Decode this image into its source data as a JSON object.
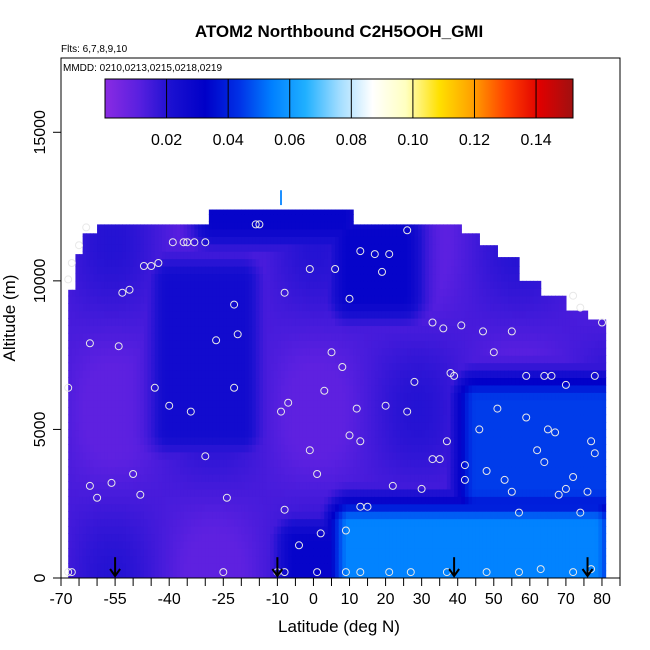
{
  "chart_data": {
    "type": "heatmap",
    "title": "ATOM2 Northbound C2H5OOH_GMI",
    "annotation_flights": "Flts: 6,7,8,9,10",
    "annotation_dates": "MMDD: 0210,0213,0215,0218,0219",
    "xlabel": "Latitude (deg N)",
    "ylabel": "Altitude (m)",
    "xlim": [
      -70,
      85
    ],
    "ylim": [
      0,
      17500
    ],
    "x_ticks": [
      -70,
      -55,
      -40,
      -25,
      -10,
      0,
      10,
      20,
      30,
      40,
      50,
      60,
      70,
      80
    ],
    "x_tick_labels": [
      "-70",
      "-55",
      "-40",
      "-25",
      "-10",
      "0",
      "10",
      "20",
      "30",
      "40",
      "50",
      "60",
      "70",
      "80"
    ],
    "x_minor_ticks": [
      -65,
      -60,
      -50,
      -45,
      -35,
      -30,
      -20,
      -15,
      -5,
      5,
      15,
      25,
      35,
      45,
      55,
      65,
      75,
      85
    ],
    "y_ticks": [
      0,
      5000,
      10000,
      15000
    ],
    "y_tick_labels": [
      "0",
      "5000",
      "10000",
      "15000"
    ],
    "colorbar": {
      "range": [
        0,
        0.152
      ],
      "ticks": [
        0.02,
        0.04,
        0.06,
        0.08,
        0.1,
        0.12,
        0.14
      ],
      "tick_labels": [
        "0.02",
        "0.04",
        "0.06",
        "0.08",
        "0.10",
        "0.12",
        "0.14"
      ],
      "colors": [
        "#8a2be2",
        "#5a20e0",
        "#1a10d0",
        "#0000c8",
        "#0030e6",
        "#0080ff",
        "#20b0ff",
        "#a0dcff",
        "#ffffff",
        "#ffffc0",
        "#ffe000",
        "#ffa000",
        "#ff4000",
        "#e00000",
        "#a01010"
      ]
    },
    "field_summary": "Mostly low values (about 0.00-0.03) across the domain; higher values (about 0.04-0.06) near the surface from 10 to 75 deg N and at 3000-6000 m north of 45 deg N",
    "grid_columns": [
      {
        "x": -68,
        "top": 9700
      },
      {
        "x": -66,
        "top": 10900
      },
      {
        "x": -64,
        "top": 11600
      },
      {
        "x": -60,
        "top": 11900
      },
      {
        "x": -40,
        "top": 11900
      },
      {
        "x": -30,
        "top": 11900
      },
      {
        "x": -29,
        "top": 12400
      },
      {
        "x": 10,
        "top": 12400
      },
      {
        "x": 11,
        "top": 11900
      },
      {
        "x": 40,
        "top": 11900
      },
      {
        "x": 41,
        "top": 11600
      },
      {
        "x": 46,
        "top": 11200
      },
      {
        "x": 50,
        "top": 11200
      },
      {
        "x": 51,
        "top": 10800
      },
      {
        "x": 56,
        "top": 10800
      },
      {
        "x": 57,
        "top": 10000
      },
      {
        "x": 62,
        "top": 10000
      },
      {
        "x": 63,
        "top": 9500
      },
      {
        "x": 69,
        "top": 9500
      },
      {
        "x": 70,
        "top": 9000
      },
      {
        "x": 75,
        "top": 9000
      },
      {
        "x": 76,
        "top": 8700
      },
      {
        "x": 80,
        "top": 8700
      }
    ],
    "high_regions": [
      {
        "x": [
          10,
          78
        ],
        "y": [
          0,
          1800
        ],
        "value": 0.055
      },
      {
        "x": [
          45,
          80
        ],
        "y": [
          3000,
          6000
        ],
        "value": 0.045
      },
      {
        "x": [
          -28,
          8
        ],
        "y": [
          12000,
          12400
        ],
        "value": 0.03
      },
      {
        "x": [
          -40,
          -20
        ],
        "y": [
          5000,
          10000
        ],
        "value": 0.025
      },
      {
        "x": [
          10,
          25
        ],
        "y": [
          9500,
          11500
        ],
        "value": 0.03
      },
      {
        "x": [
          -5,
          10
        ],
        "y": [
          0,
          1200
        ],
        "value": 0.03
      }
    ],
    "marker_12500": {
      "x": -9,
      "y": 12800
    },
    "observations": [
      {
        "x": -68,
        "y": 10050
      },
      {
        "x": -67,
        "y": 10600
      },
      {
        "x": -65,
        "y": 11200
      },
      {
        "x": -63,
        "y": 11800
      },
      {
        "x": -62,
        "y": 7900
      },
      {
        "x": -54,
        "y": 7800
      },
      {
        "x": -53,
        "y": 9600
      },
      {
        "x": -51,
        "y": 9700
      },
      {
        "x": -47,
        "y": 10500
      },
      {
        "x": -45,
        "y": 10500
      },
      {
        "x": -43,
        "y": 10600
      },
      {
        "x": -39,
        "y": 11300
      },
      {
        "x": -36,
        "y": 11300
      },
      {
        "x": -35,
        "y": 11300
      },
      {
        "x": -33,
        "y": 11300
      },
      {
        "x": -30,
        "y": 11300
      },
      {
        "x": -27,
        "y": 8000
      },
      {
        "x": -22,
        "y": 9200
      },
      {
        "x": -21,
        "y": 8200
      },
      {
        "x": -16,
        "y": 11900
      },
      {
        "x": -15,
        "y": 11900
      },
      {
        "x": -8,
        "y": 9600
      },
      {
        "x": -1,
        "y": 10400
      },
      {
        "x": 6,
        "y": 10400
      },
      {
        "x": 10,
        "y": 9400
      },
      {
        "x": 13,
        "y": 11000
      },
      {
        "x": 17,
        "y": 10900
      },
      {
        "x": 19,
        "y": 10300
      },
      {
        "x": 21,
        "y": 10900
      },
      {
        "x": 26,
        "y": 11700
      },
      {
        "x": 33,
        "y": 8600
      },
      {
        "x": 36,
        "y": 8400
      },
      {
        "x": 38,
        "y": 6900
      },
      {
        "x": 39,
        "y": 6800
      },
      {
        "x": 41,
        "y": 8500
      },
      {
        "x": 47,
        "y": 8300
      },
      {
        "x": 50,
        "y": 7600
      },
      {
        "x": 55,
        "y": 8300
      },
      {
        "x": 59,
        "y": 6800
      },
      {
        "x": 64,
        "y": 6800
      },
      {
        "x": 66,
        "y": 6800
      },
      {
        "x": 70,
        "y": 6500
      },
      {
        "x": 72,
        "y": 9500
      },
      {
        "x": 74,
        "y": 9100
      },
      {
        "x": 78,
        "y": 6800
      },
      {
        "x": 80,
        "y": 8600
      },
      {
        "x": -68,
        "y": 6400
      },
      {
        "x": -62,
        "y": 3100
      },
      {
        "x": -60,
        "y": 2700
      },
      {
        "x": -56,
        "y": 3200
      },
      {
        "x": -50,
        "y": 3500
      },
      {
        "x": -48,
        "y": 2800
      },
      {
        "x": -44,
        "y": 6400
      },
      {
        "x": -40,
        "y": 5800
      },
      {
        "x": -34,
        "y": 5600
      },
      {
        "x": -30,
        "y": 4100
      },
      {
        "x": -24,
        "y": 2700
      },
      {
        "x": -22,
        "y": 6400
      },
      {
        "x": -9,
        "y": 5600
      },
      {
        "x": -7,
        "y": 5900
      },
      {
        "x": -1,
        "y": 4300
      },
      {
        "x": 1,
        "y": 3500
      },
      {
        "x": 3,
        "y": 6300
      },
      {
        "x": 5,
        "y": 7600
      },
      {
        "x": 8,
        "y": 7100
      },
      {
        "x": 12,
        "y": 5700
      },
      {
        "x": 10,
        "y": 4800
      },
      {
        "x": 13,
        "y": 4600
      },
      {
        "x": 15,
        "y": 2400
      },
      {
        "x": 20,
        "y": 5800
      },
      {
        "x": 22,
        "y": 3100
      },
      {
        "x": 26,
        "y": 5600
      },
      {
        "x": 28,
        "y": 6600
      },
      {
        "x": 30,
        "y": 3000
      },
      {
        "x": 33,
        "y": 4000
      },
      {
        "x": 35,
        "y": 4000
      },
      {
        "x": 37,
        "y": 4600
      },
      {
        "x": 42,
        "y": 3800
      },
      {
        "x": 42,
        "y": 3300
      },
      {
        "x": 46,
        "y": 5000
      },
      {
        "x": 48,
        "y": 3600
      },
      {
        "x": 51,
        "y": 5700
      },
      {
        "x": 53,
        "y": 3300
      },
      {
        "x": 55,
        "y": 2900
      },
      {
        "x": 57,
        "y": 2200
      },
      {
        "x": 59,
        "y": 5400
      },
      {
        "x": 62,
        "y": 4300
      },
      {
        "x": 64,
        "y": 3900
      },
      {
        "x": 65,
        "y": 5000
      },
      {
        "x": 67,
        "y": 4900
      },
      {
        "x": 68,
        "y": 2800
      },
      {
        "x": 70,
        "y": 3000
      },
      {
        "x": 72,
        "y": 3400
      },
      {
        "x": 74,
        "y": 2200
      },
      {
        "x": 76,
        "y": 2900
      },
      {
        "x": 77,
        "y": 4600
      },
      {
        "x": 78,
        "y": 4200
      },
      {
        "x": -8,
        "y": 2300
      },
      {
        "x": -4,
        "y": 1100
      },
      {
        "x": 2,
        "y": 1500
      },
      {
        "x": 9,
        "y": 1600
      },
      {
        "x": 13,
        "y": 2400
      },
      {
        "x": -68,
        "y": 200
      },
      {
        "x": -67,
        "y": 200
      },
      {
        "x": -25,
        "y": 200
      },
      {
        "x": -10,
        "y": 200
      },
      {
        "x": -8,
        "y": 200
      },
      {
        "x": 1,
        "y": 200
      },
      {
        "x": 9,
        "y": 200
      },
      {
        "x": 13,
        "y": 200
      },
      {
        "x": 21,
        "y": 200
      },
      {
        "x": 27,
        "y": 200
      },
      {
        "x": 37,
        "y": 200
      },
      {
        "x": 48,
        "y": 200
      },
      {
        "x": 57,
        "y": 200
      },
      {
        "x": 63,
        "y": 300
      },
      {
        "x": 72,
        "y": 200
      },
      {
        "x": 77,
        "y": 300
      }
    ],
    "arrows": [
      {
        "x": -55,
        "y_top": 700,
        "y_bottom": 0
      },
      {
        "x": -10,
        "y_top": 700,
        "y_bottom": 0
      },
      {
        "x": 39,
        "y_top": 700,
        "y_bottom": 0
      },
      {
        "x": 76,
        "y_top": 700,
        "y_bottom": 0
      }
    ]
  }
}
